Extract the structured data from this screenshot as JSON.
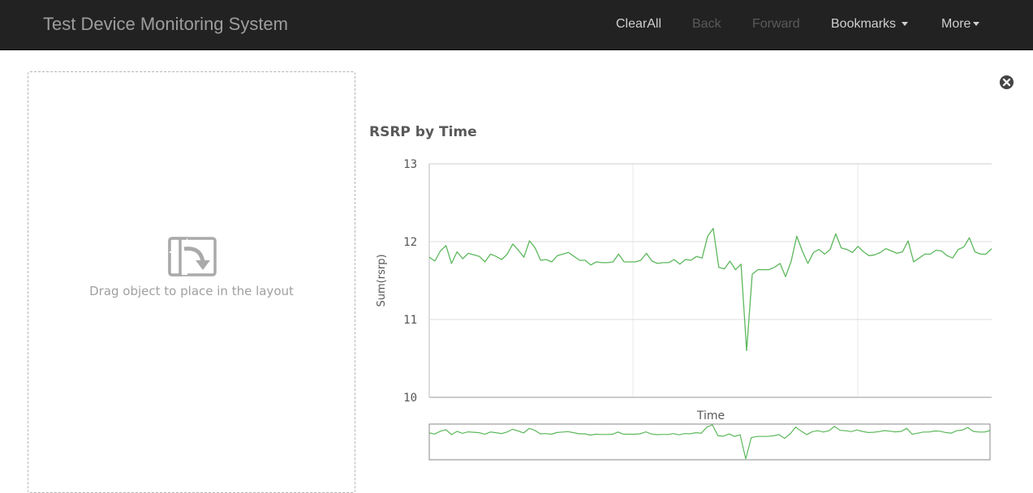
{
  "navbar": {
    "brand": "Test Device Monitoring System",
    "items": [
      {
        "label": "ClearAll",
        "enabled": true
      },
      {
        "label": "Back",
        "enabled": false
      },
      {
        "label": "Forward",
        "enabled": false
      },
      {
        "label": "Bookmarks",
        "enabled": true,
        "dropdown": true
      },
      {
        "label": "More",
        "enabled": true,
        "dropdown": true
      }
    ]
  },
  "dropzone": {
    "icon": "drag-drop-icon",
    "text": "Drag object to place in the layout"
  },
  "close_icon": "close-circle-icon",
  "colors": {
    "navbar_bg": "#222222",
    "line": "#5cb85c",
    "grid": "#dddddd"
  },
  "chart_data": {
    "type": "line",
    "title": "RSRP by Time",
    "xlabel": "Time",
    "ylabel": "Sum(rsrp)",
    "ylim": [
      10,
      13
    ],
    "yticks": [
      10,
      11,
      12,
      13
    ],
    "grid": true,
    "mini_chart": true,
    "series": [
      {
        "values": [
          11.8,
          11.75,
          11.88,
          11.95,
          11.72,
          11.87,
          11.78,
          11.85,
          11.83,
          11.81,
          11.74,
          11.84,
          11.81,
          11.77,
          11.84,
          11.97,
          11.89,
          11.8,
          12.01,
          11.92,
          11.76,
          11.77,
          11.74,
          11.82,
          11.84,
          11.86,
          11.81,
          11.76,
          11.76,
          11.7,
          11.74,
          11.73,
          11.73,
          11.74,
          11.84,
          11.74,
          11.74,
          11.74,
          11.76,
          11.85,
          11.75,
          11.72,
          11.73,
          11.73,
          11.77,
          11.71,
          11.77,
          11.76,
          11.81,
          11.79,
          12.07,
          12.17,
          11.67,
          11.65,
          11.75,
          11.64,
          11.71,
          10.6,
          11.58,
          11.64,
          11.64,
          11.64,
          11.67,
          11.72,
          11.55,
          11.75,
          12.07,
          11.88,
          11.72,
          11.86,
          11.9,
          11.84,
          11.9,
          12.1,
          11.92,
          11.9,
          11.86,
          11.94,
          11.87,
          11.82,
          11.83,
          11.86,
          11.91,
          11.88,
          11.85,
          11.87,
          12.01,
          11.74,
          11.79,
          11.84,
          11.84,
          11.89,
          11.88,
          11.82,
          11.79,
          11.9,
          11.93,
          12.05,
          11.87,
          11.84,
          11.84,
          11.91
        ]
      }
    ]
  }
}
